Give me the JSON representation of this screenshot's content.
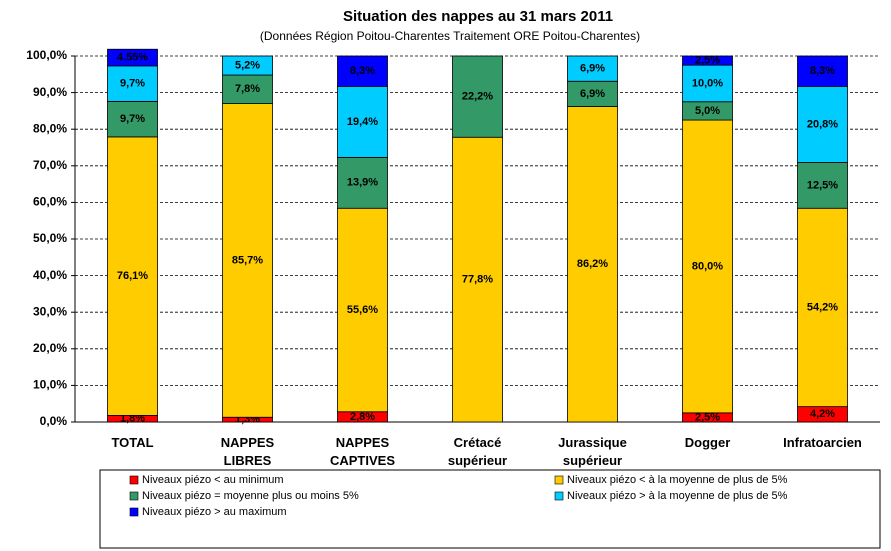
{
  "chart_data": {
    "type": "stacked_bar",
    "title": "Situation des nappes au 31 mars 2011",
    "subtitle": "(Données Région Poitou-Charentes Traitement ORE Poitou-Charentes)",
    "categories": [
      "TOTAL",
      "NAPPES LIBRES",
      "NAPPES CAPTIVES",
      "Crétacé supérieur",
      "Jurassique supérieur",
      "Dogger",
      "Infratoarcien"
    ],
    "series": [
      {
        "name": "Niveaux piézo < au minimum",
        "color": "#ff0000",
        "values": [
          1.8,
          1.3,
          2.8,
          null,
          null,
          2.5,
          4.2
        ],
        "value_labels": [
          "1,8%",
          "1,3%",
          "2,8%",
          null,
          null,
          "2,5%",
          "4,2%"
        ]
      },
      {
        "name": "Niveaux piézo < à la moyenne de plus de 5%",
        "color": "#ffcc00",
        "values": [
          76.1,
          85.7,
          55.6,
          77.8,
          86.2,
          80.0,
          54.2
        ],
        "value_labels": [
          "76,1%",
          "85,7%",
          "55,6%",
          "77,8%",
          "86,2%",
          "80,0%",
          "54,2%"
        ]
      },
      {
        "name": "Niveaux piézo = moyenne plus ou moins 5%",
        "color": "#339966",
        "values": [
          9.7,
          7.8,
          13.9,
          22.2,
          6.9,
          5.0,
          12.5
        ],
        "value_labels": [
          "9,7%",
          "7,8%",
          "13,9%",
          "22,2%",
          "6,9%",
          "5,0%",
          "12,5%"
        ]
      },
      {
        "name": "Niveaux piézo > à la moyenne de plus de 5%",
        "color": "#00ccff",
        "values": [
          9.7,
          5.2,
          19.4,
          null,
          6.9,
          10.0,
          20.8
        ],
        "value_labels": [
          "9,7%",
          "5,2%",
          "19,4%",
          null,
          "6,9%",
          "10,0%",
          "20,8%"
        ]
      },
      {
        "name": "Niveaux piézo > au maximum",
        "color": "#0000ff",
        "values": [
          4.55,
          null,
          8.3,
          null,
          null,
          2.5,
          8.3
        ],
        "value_labels": [
          "4.55%",
          null,
          "8,3%",
          null,
          null,
          "2,5%",
          "8,3%"
        ]
      }
    ],
    "ylim": [
      0,
      100
    ],
    "yticks": [
      {
        "value": 0,
        "label": "0,0%"
      },
      {
        "value": 10,
        "label": "10,0%"
      },
      {
        "value": 20,
        "label": "20,0%"
      },
      {
        "value": 30,
        "label": "30,0%"
      },
      {
        "value": 40,
        "label": "40,0%"
      },
      {
        "value": 50,
        "label": "50,0%"
      },
      {
        "value": 60,
        "label": "60,0%"
      },
      {
        "value": 70,
        "label": "70,0%"
      },
      {
        "value": 80,
        "label": "80,0%"
      },
      {
        "value": 90,
        "label": "90,0%"
      },
      {
        "value": 100,
        "label": "100,0%"
      }
    ],
    "grid": true
  }
}
